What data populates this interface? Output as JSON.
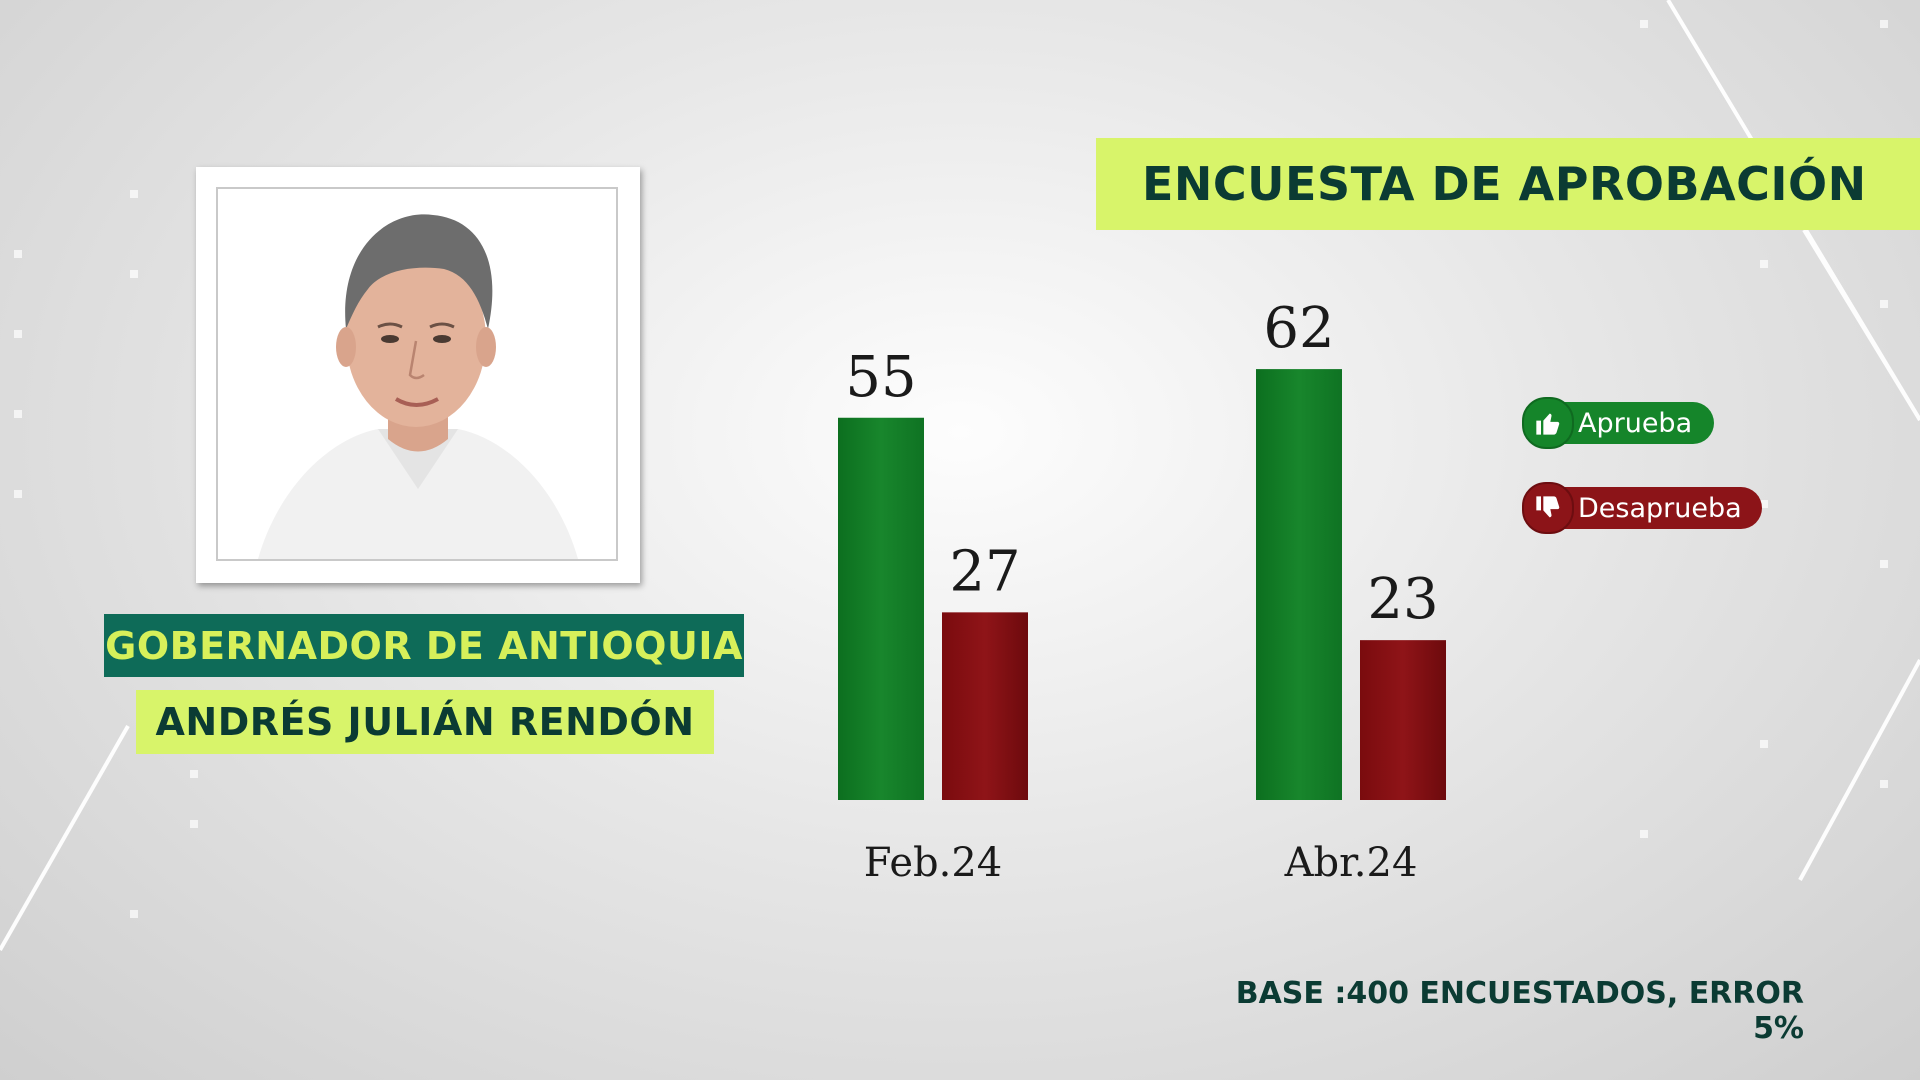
{
  "header": {
    "title": "ENCUESTA DE APROBACIÓN"
  },
  "person": {
    "role": "GOBERNADOR DE ANTIOQUIA",
    "name": "ANDRÉS JULIÁN RENDÓN"
  },
  "legend": {
    "approve": "Aprueba",
    "disapprove": "Desaprueba",
    "approve_icon": "thumbs-up-icon",
    "disapprove_icon": "thumbs-down-icon"
  },
  "footer": {
    "note": "BASE :400 ENCUESTADOS, ERROR 5%"
  },
  "colors": {
    "approve": "#15852a",
    "disapprove": "#8c1418",
    "accent_green": "#d8f46a",
    "dark_teal": "#0e6b58"
  },
  "chart_data": {
    "type": "bar",
    "categories": [
      "Feb.24",
      "Abr.24"
    ],
    "series": [
      {
        "name": "Aprueba",
        "values": [
          55,
          62
        ]
      },
      {
        "name": "Desaprueba",
        "values": [
          27,
          23
        ]
      }
    ],
    "data_labels": true,
    "legend_position": "right",
    "grid": false,
    "ylim": [
      0,
      62
    ]
  }
}
